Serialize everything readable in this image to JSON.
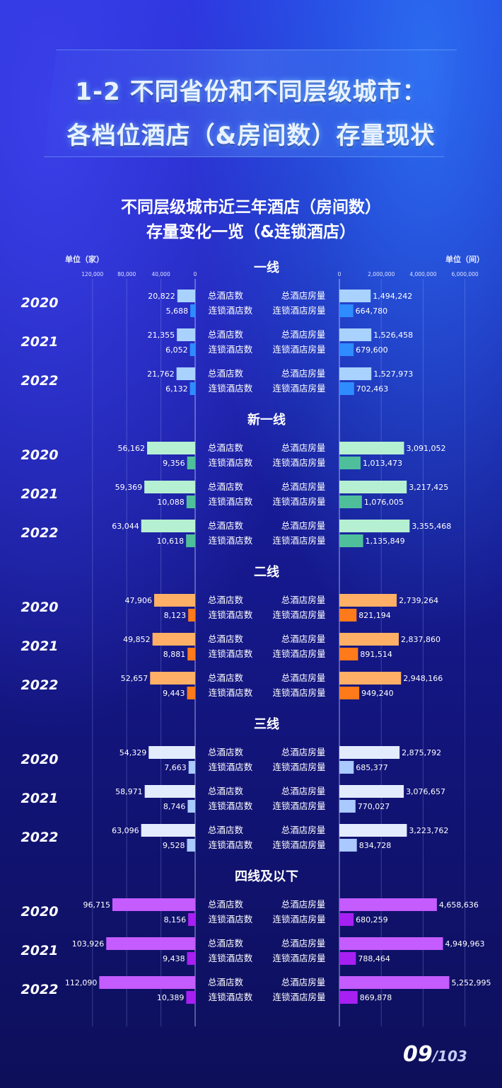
{
  "header": {
    "title_line1": "1-2 不同省份和不同层级城市：",
    "title_line2": "各档位酒店（&房间数）存量现状",
    "subtitle_line1": "不同层级城市近三年酒店（房间数）",
    "subtitle_line2": "存量变化一览（&连锁酒店）"
  },
  "units": {
    "left": "单位（家）",
    "right": "单位（间）"
  },
  "page": {
    "current": "09",
    "total": "/103"
  },
  "colors": {
    "tier1": [
      "#a9d2ff",
      "#2f8cff"
    ],
    "newtier1": [
      "#b6f0d2",
      "#4fbf9b"
    ],
    "tier2": [
      "#ffb066",
      "#ff7a1a"
    ],
    "tier3": [
      "#e3ecff",
      "#a9c9ff"
    ],
    "tier4": [
      "#c45cff",
      "#a720f2"
    ]
  },
  "chart_data": {
    "type": "bar",
    "orientation": "horizontal-butterfly",
    "left_axis": {
      "unit": "单位（家）",
      "ticks": [
        "120,000",
        "80,000",
        "40,000",
        "0"
      ],
      "range": [
        0,
        120000
      ]
    },
    "right_axis": {
      "unit": "单位（间）",
      "ticks": [
        "0",
        "2,000,000",
        "4,000,000",
        "6,000,000"
      ],
      "range": [
        0,
        6000000
      ]
    },
    "grid": true,
    "labels": {
      "hotels": "总酒店数",
      "chain_hotels": "连锁酒店数",
      "rooms": "总酒店房量",
      "chain_rooms": "连锁酒店房量"
    },
    "groups": [
      {
        "name": "一线",
        "color_key": "tier1",
        "years": [
          {
            "year": "2020",
            "hotels": 20822,
            "chain_hotels": 5688,
            "rooms": 1494242,
            "chain_rooms": 664780
          },
          {
            "year": "2021",
            "hotels": 21355,
            "chain_hotels": 6052,
            "rooms": 1526458,
            "chain_rooms": 679600
          },
          {
            "year": "2022",
            "hotels": 21762,
            "chain_hotels": 6132,
            "rooms": 1527973,
            "chain_rooms": 702463
          }
        ]
      },
      {
        "name": "新一线",
        "color_key": "newtier1",
        "years": [
          {
            "year": "2020",
            "hotels": 56162,
            "chain_hotels": 9356,
            "rooms": 3091052,
            "chain_rooms": 1013473
          },
          {
            "year": "2021",
            "hotels": 59369,
            "chain_hotels": 10088,
            "rooms": 3217425,
            "chain_rooms": 1076005
          },
          {
            "year": "2022",
            "hotels": 63044,
            "chain_hotels": 10618,
            "rooms": 3355468,
            "chain_rooms": 1135849
          }
        ]
      },
      {
        "name": "二线",
        "color_key": "tier2",
        "years": [
          {
            "year": "2020",
            "hotels": 47906,
            "chain_hotels": 8123,
            "rooms": 2739264,
            "chain_rooms": 821194
          },
          {
            "year": "2021",
            "hotels": 49852,
            "chain_hotels": 8881,
            "rooms": 2837860,
            "chain_rooms": 891514
          },
          {
            "year": "2022",
            "hotels": 52657,
            "chain_hotels": 9443,
            "rooms": 2948166,
            "chain_rooms": 949240
          }
        ]
      },
      {
        "name": "三线",
        "color_key": "tier3",
        "years": [
          {
            "year": "2020",
            "hotels": 54329,
            "chain_hotels": 7663,
            "rooms": 2875792,
            "chain_rooms": 685377
          },
          {
            "year": "2021",
            "hotels": 58971,
            "chain_hotels": 8746,
            "rooms": 3076657,
            "chain_rooms": 770027
          },
          {
            "year": "2022",
            "hotels": 63096,
            "chain_hotels": 9528,
            "rooms": 3223762,
            "chain_rooms": 834728
          }
        ]
      },
      {
        "name": "四线及以下",
        "color_key": "tier4",
        "years": [
          {
            "year": "2020",
            "hotels": 96715,
            "chain_hotels": 8156,
            "rooms": 4658636,
            "chain_rooms": 680259
          },
          {
            "year": "2021",
            "hotels": 103926,
            "chain_hotels": 9438,
            "rooms": 4949963,
            "chain_rooms": 788464
          },
          {
            "year": "2022",
            "hotels": 112090,
            "chain_hotels": 10389,
            "rooms": 5252995,
            "chain_rooms": 869878
          }
        ]
      }
    ]
  }
}
